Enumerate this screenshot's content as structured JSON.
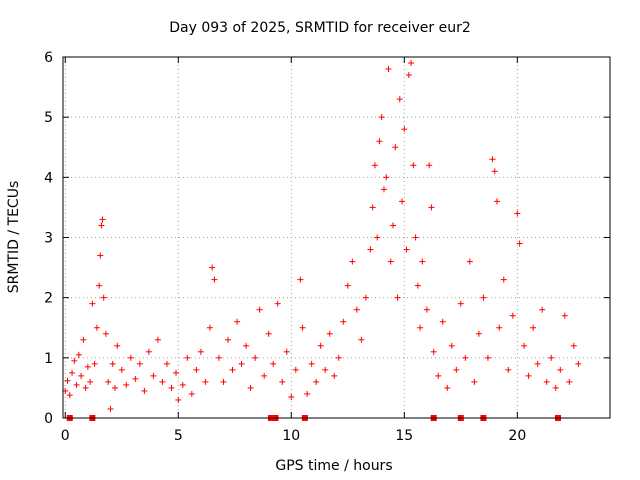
{
  "chart_data": {
    "type": "scatter",
    "title": "Day 093 of 2025, SRMTID for receiver eur2",
    "xlabel": "GPS time / hours",
    "ylabel": "SRMTID / TECUs",
    "xlim": [
      -0.1,
      24.1
    ],
    "ylim": [
      0,
      6
    ],
    "x_ticks": [
      0,
      5,
      10,
      15,
      20
    ],
    "x_tick_labels": [
      "0",
      "5",
      "10",
      "15",
      "20"
    ],
    "y_ticks": [
      0,
      1,
      2,
      3,
      4,
      5,
      6
    ],
    "y_tick_labels": [
      "0",
      "1",
      "2",
      "3",
      "4",
      "5",
      "6"
    ],
    "grid": true,
    "marker": "+",
    "marker_color": "#ff0000",
    "series": [
      {
        "name": "SRMTID",
        "points": [
          [
            0.0,
            0.45
          ],
          [
            0.1,
            0.62
          ],
          [
            0.2,
            0.38
          ],
          [
            0.3,
            0.75
          ],
          [
            0.4,
            0.95
          ],
          [
            0.5,
            0.55
          ],
          [
            0.6,
            1.05
          ],
          [
            0.7,
            0.7
          ],
          [
            0.8,
            1.3
          ],
          [
            0.9,
            0.5
          ],
          [
            1.0,
            0.85
          ],
          [
            1.1,
            0.6
          ],
          [
            1.2,
            1.9
          ],
          [
            1.3,
            0.9
          ],
          [
            1.4,
            1.5
          ],
          [
            1.5,
            2.2
          ],
          [
            1.55,
            2.7
          ],
          [
            1.6,
            3.2
          ],
          [
            1.65,
            3.3
          ],
          [
            1.7,
            2.0
          ],
          [
            1.8,
            1.4
          ],
          [
            1.9,
            0.6
          ],
          [
            2.0,
            0.15
          ],
          [
            2.1,
            0.9
          ],
          [
            2.2,
            0.5
          ],
          [
            2.3,
            1.2
          ],
          [
            2.5,
            0.8
          ],
          [
            2.7,
            0.55
          ],
          [
            2.9,
            1.0
          ],
          [
            3.1,
            0.65
          ],
          [
            3.3,
            0.9
          ],
          [
            3.5,
            0.45
          ],
          [
            3.7,
            1.1
          ],
          [
            3.9,
            0.7
          ],
          [
            4.1,
            1.3
          ],
          [
            4.3,
            0.6
          ],
          [
            4.5,
            0.9
          ],
          [
            4.7,
            0.5
          ],
          [
            4.9,
            0.75
          ],
          [
            5.0,
            0.3
          ],
          [
            5.2,
            0.55
          ],
          [
            5.4,
            1.0
          ],
          [
            5.6,
            0.4
          ],
          [
            5.8,
            0.8
          ],
          [
            6.0,
            1.1
          ],
          [
            6.2,
            0.6
          ],
          [
            6.4,
            1.5
          ],
          [
            6.5,
            2.5
          ],
          [
            6.6,
            2.3
          ],
          [
            6.8,
            1.0
          ],
          [
            7.0,
            0.6
          ],
          [
            7.2,
            1.3
          ],
          [
            7.4,
            0.8
          ],
          [
            7.6,
            1.6
          ],
          [
            7.8,
            0.9
          ],
          [
            8.0,
            1.2
          ],
          [
            8.2,
            0.5
          ],
          [
            8.4,
            1.0
          ],
          [
            8.6,
            1.8
          ],
          [
            8.8,
            0.7
          ],
          [
            9.0,
            1.4
          ],
          [
            9.2,
            0.9
          ],
          [
            9.4,
            1.9
          ],
          [
            9.6,
            0.6
          ],
          [
            9.8,
            1.1
          ],
          [
            10.0,
            0.35
          ],
          [
            10.2,
            0.8
          ],
          [
            10.4,
            2.3
          ],
          [
            10.5,
            1.5
          ],
          [
            10.7,
            0.4
          ],
          [
            10.9,
            0.9
          ],
          [
            11.1,
            0.6
          ],
          [
            11.3,
            1.2
          ],
          [
            11.5,
            0.8
          ],
          [
            11.7,
            1.4
          ],
          [
            11.9,
            0.7
          ],
          [
            12.1,
            1.0
          ],
          [
            12.3,
            1.6
          ],
          [
            12.5,
            2.2
          ],
          [
            12.7,
            2.6
          ],
          [
            12.9,
            1.8
          ],
          [
            13.1,
            1.3
          ],
          [
            13.3,
            2.0
          ],
          [
            13.5,
            2.8
          ],
          [
            13.6,
            3.5
          ],
          [
            13.7,
            4.2
          ],
          [
            13.8,
            3.0
          ],
          [
            13.9,
            4.6
          ],
          [
            14.0,
            5.0
          ],
          [
            14.1,
            3.8
          ],
          [
            14.2,
            4.0
          ],
          [
            14.3,
            5.8
          ],
          [
            14.4,
            2.6
          ],
          [
            14.5,
            3.2
          ],
          [
            14.6,
            4.5
          ],
          [
            14.7,
            2.0
          ],
          [
            14.8,
            5.3
          ],
          [
            14.9,
            3.6
          ],
          [
            15.0,
            4.8
          ],
          [
            15.1,
            2.8
          ],
          [
            15.2,
            5.7
          ],
          [
            15.3,
            5.9
          ],
          [
            15.4,
            4.2
          ],
          [
            15.5,
            3.0
          ],
          [
            15.6,
            2.2
          ],
          [
            15.7,
            1.5
          ],
          [
            15.8,
            2.6
          ],
          [
            16.0,
            1.8
          ],
          [
            16.1,
            4.2
          ],
          [
            16.2,
            3.5
          ],
          [
            16.3,
            1.1
          ],
          [
            16.5,
            0.7
          ],
          [
            16.7,
            1.6
          ],
          [
            16.9,
            0.5
          ],
          [
            17.1,
            1.2
          ],
          [
            17.3,
            0.8
          ],
          [
            17.5,
            1.9
          ],
          [
            17.7,
            1.0
          ],
          [
            17.9,
            2.6
          ],
          [
            18.1,
            0.6
          ],
          [
            18.3,
            1.4
          ],
          [
            18.5,
            2.0
          ],
          [
            18.7,
            1.0
          ],
          [
            18.9,
            4.3
          ],
          [
            19.0,
            4.1
          ],
          [
            19.1,
            3.6
          ],
          [
            19.2,
            1.5
          ],
          [
            19.4,
            2.3
          ],
          [
            19.6,
            0.8
          ],
          [
            19.8,
            1.7
          ],
          [
            20.0,
            3.4
          ],
          [
            20.1,
            2.9
          ],
          [
            20.3,
            1.2
          ],
          [
            20.5,
            0.7
          ],
          [
            20.7,
            1.5
          ],
          [
            20.9,
            0.9
          ],
          [
            21.1,
            1.8
          ],
          [
            21.3,
            0.6
          ],
          [
            21.5,
            1.0
          ],
          [
            21.7,
            0.5
          ],
          [
            21.9,
            0.8
          ],
          [
            22.1,
            1.7
          ],
          [
            22.3,
            0.6
          ],
          [
            22.5,
            1.2
          ],
          [
            22.7,
            0.9
          ]
        ]
      }
    ],
    "baseline_marks_x": [
      0.2,
      1.2,
      9.1,
      9.3,
      10.6,
      16.3,
      17.5,
      18.5,
      21.8
    ]
  }
}
